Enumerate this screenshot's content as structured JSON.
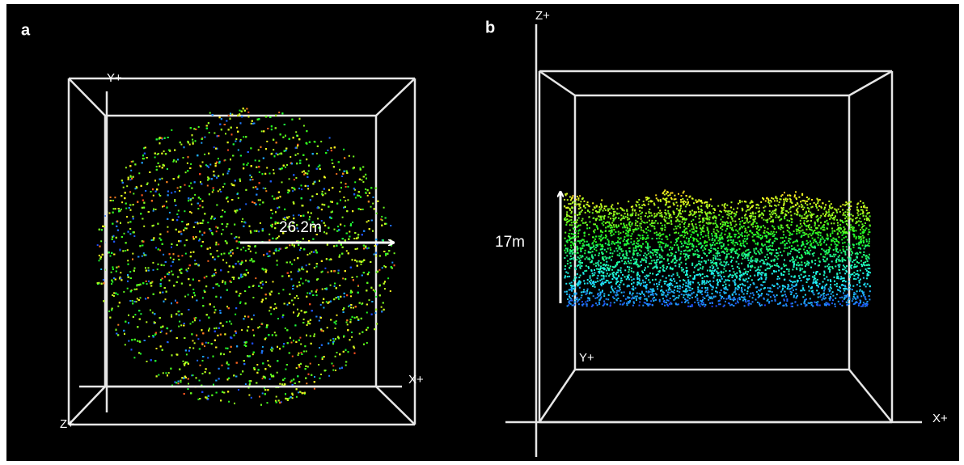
{
  "panels": [
    {
      "label": "a",
      "axis_labels": [
        "Y+",
        "X+",
        "Z+"
      ],
      "annotation": "26.2m"
    },
    {
      "label": "b",
      "axis_labels": [
        "Z+",
        "Y+",
        "X+"
      ],
      "annotation": "17m"
    }
  ]
}
